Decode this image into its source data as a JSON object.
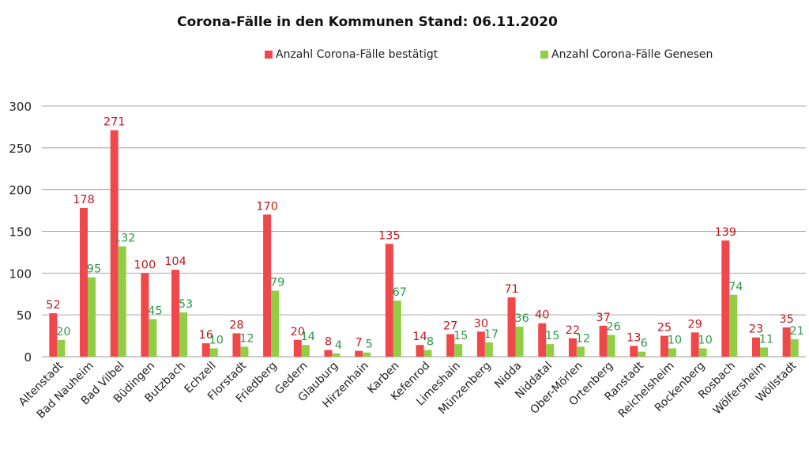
{
  "chart_data": {
    "type": "bar",
    "title": "Corona-Fälle in den Kommunen Stand: 06.11.2020",
    "xlabel": "",
    "ylabel": "",
    "ylim": [
      0,
      300
    ],
    "yticks": [
      0,
      50,
      100,
      150,
      200,
      250,
      300
    ],
    "grid": true,
    "legend_position": "top",
    "categories": [
      "Altenstadt",
      "Bad Nauheim",
      "Bad Vilbel",
      "Büdingen",
      "Butzbach",
      "Echzell",
      "Florstadt",
      "Friedberg",
      "Gedern",
      "Glauburg",
      "Hirzenhain",
      "Karben",
      "Kefenrod",
      "Limeshain",
      "Münzenberg",
      "Nidda",
      "Niddatal",
      "Ober-Mörlen",
      "Ortenberg",
      "Ranstadt",
      "Reichelsheim",
      "Rockenberg",
      "Rosbach",
      "Wölfersheim",
      "Wöllstadt"
    ],
    "series": [
      {
        "name": "Anzahl Corona-Fälle bestätigt",
        "color": "#f0474b",
        "label_color": "#c0191f",
        "values": [
          52,
          178,
          271,
          100,
          104,
          16,
          28,
          170,
          20,
          8,
          7,
          135,
          14,
          27,
          30,
          71,
          40,
          22,
          37,
          13,
          25,
          29,
          139,
          23,
          35
        ]
      },
      {
        "name": "Anzahl Corona-Fälle Genesen",
        "color": "#8fce45",
        "label_color": "#2a9a4a",
        "values": [
          20,
          95,
          132,
          45,
          53,
          10,
          12,
          79,
          14,
          4,
          5,
          67,
          8,
          15,
          17,
          36,
          15,
          12,
          26,
          6,
          10,
          10,
          74,
          11,
          21
        ]
      }
    ]
  }
}
